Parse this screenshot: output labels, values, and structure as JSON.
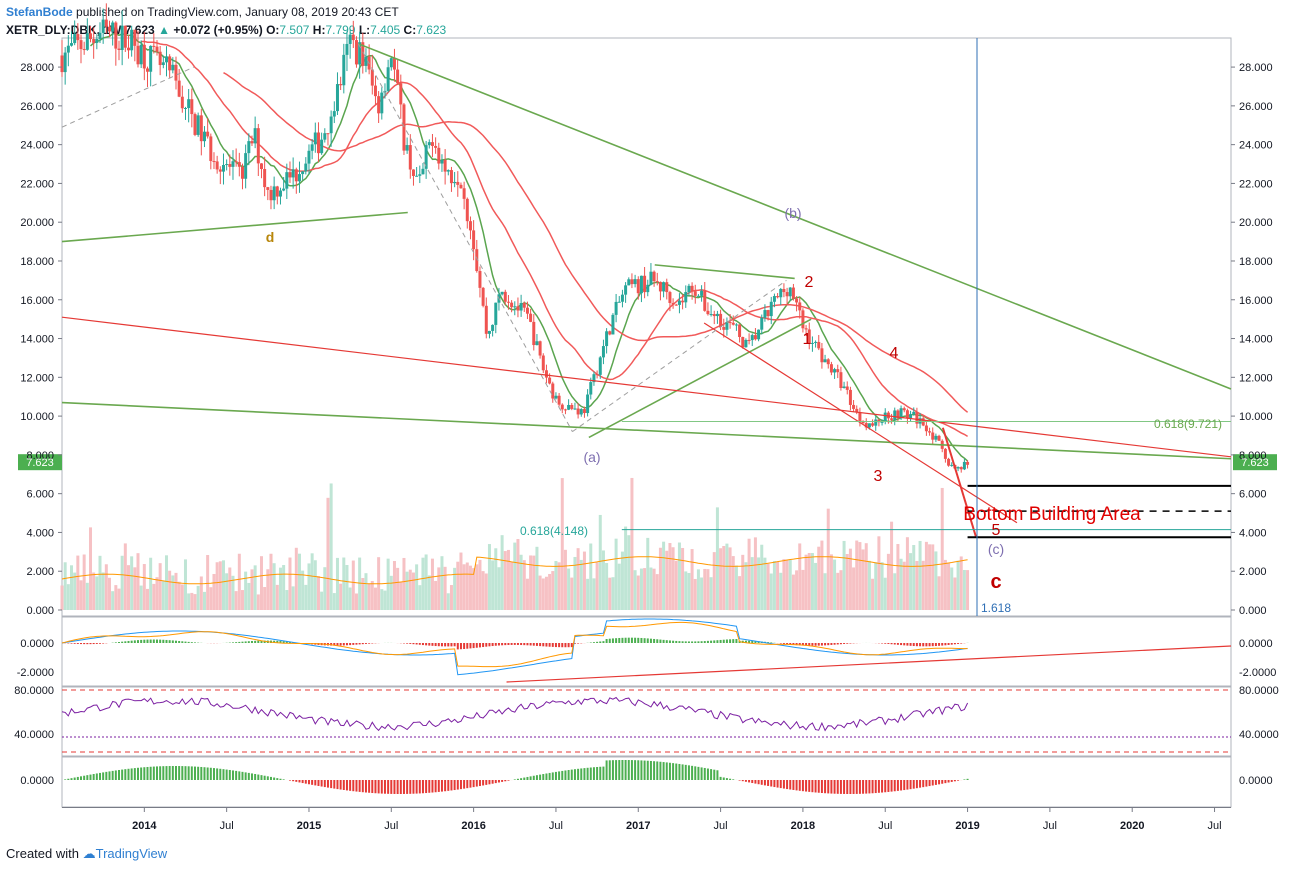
{
  "header": {
    "author": "StefanBode",
    "published_text": "published on TradingView.com, January 08, 2019 20:43 CET",
    "symbol": "XETR_DLY:DBK, 1W",
    "price": "7.623",
    "change": "+0.072 (+0.95%)",
    "open_label": "O:",
    "open": "7.507",
    "high_label": "H:",
    "high": "7.799",
    "low_label": "L:",
    "low": "7.405",
    "close_label": "C:",
    "close": "7.623"
  },
  "footer": {
    "created_with": "Created with",
    "brand": "TradingView"
  },
  "colors": {
    "up": "#26a69a",
    "down": "#ef5350",
    "ma": "#f15a5a",
    "ma_fast": "#5aa54f",
    "trend_green": "#6aa84f",
    "trend_red": "#e53935",
    "volume_up": "#bfe5d5",
    "volume_down": "#f6c1c4",
    "price_tag": "#4caf50",
    "macd_line": "#2196f3",
    "signal_line": "#ff9800",
    "rsi": "#7b1fa2",
    "hist_up": "#4caf50",
    "hist_down": "#e53935",
    "wave_red": "#c00000",
    "wave_purple": "#7e6fb0"
  },
  "chart_data": [
    {
      "type": "candlestick",
      "title": "XETR_DLY:DBK, 1W",
      "y_ticks": [
        "28.000",
        "26.000",
        "24.000",
        "22.000",
        "20.000",
        "18.000",
        "16.000",
        "14.000",
        "12.000",
        "10.000",
        "8.000",
        "6.000",
        "4.000",
        "2.000",
        "0.000"
      ],
      "ylim": [
        0,
        29.5
      ],
      "x_ticks": [
        "2014",
        "Jul",
        "2015",
        "Jul",
        "2016",
        "Jul",
        "2017",
        "Jul",
        "2018",
        "Jul",
        "2019",
        "Jul",
        "2020",
        "Jul"
      ],
      "x_range": [
        "2013-06",
        "2020-08"
      ],
      "last_price_tag": "7.623",
      "price_path": [
        [
          "2013-07",
          28.6
        ],
        [
          "2013-10",
          29.8
        ],
        [
          "2013-12",
          29.3
        ],
        [
          "2014-03",
          27.5
        ],
        [
          "2014-04",
          26.0
        ],
        [
          "2014-06",
          23.5
        ],
        [
          "2014-08",
          22.3
        ],
        [
          "2014-09",
          24.5
        ],
        [
          "2014-10",
          21.5
        ],
        [
          "2014-12",
          22.5
        ],
        [
          "2015-02",
          24.5
        ],
        [
          "2015-03",
          26.5
        ],
        [
          "2015-04",
          29.3
        ],
        [
          "2015-05",
          28.5
        ],
        [
          "2015-06",
          26.0
        ],
        [
          "2015-07",
          28.8
        ],
        [
          "2015-08",
          24.0
        ],
        [
          "2015-09",
          21.8
        ],
        [
          "2015-10",
          24.6
        ],
        [
          "2015-11",
          22.5
        ],
        [
          "2015-12",
          22.6
        ],
        [
          "2016-01",
          19.0
        ],
        [
          "2016-02",
          14.0
        ],
        [
          "2016-03",
          16.5
        ],
        [
          "2016-05",
          15.0
        ],
        [
          "2016-06",
          12.6
        ],
        [
          "2016-07",
          10.8
        ],
        [
          "2016-09",
          10.2
        ],
        [
          "2016-10",
          12.5
        ],
        [
          "2016-11",
          14.8
        ],
        [
          "2016-12",
          16.5
        ],
        [
          "2017-02",
          17.0
        ],
        [
          "2017-03",
          16.5
        ],
        [
          "2017-04",
          15.8
        ],
        [
          "2017-05",
          16.8
        ],
        [
          "2017-06",
          15.5
        ],
        [
          "2017-08",
          14.5
        ],
        [
          "2017-09",
          13.5
        ],
        [
          "2017-11",
          16.0
        ],
        [
          "2017-12",
          16.8
        ],
        [
          "2018-01",
          14.6
        ],
        [
          "2018-02",
          13.5
        ],
        [
          "2018-03",
          12.5
        ],
        [
          "2018-04",
          11.5
        ],
        [
          "2018-05",
          10.0
        ],
        [
          "2018-06",
          9.5
        ],
        [
          "2018-07",
          10.0
        ],
        [
          "2018-08",
          10.2
        ],
        [
          "2018-09",
          10.0
        ],
        [
          "2018-10",
          9.5
        ],
        [
          "2018-11",
          8.4
        ],
        [
          "2018-12",
          7.2
        ],
        [
          "2019-01",
          7.623
        ]
      ],
      "levels": [
        {
          "label": "0.618(9.721)",
          "value": 9.721
        },
        {
          "label": "0.618(4.148)",
          "value": 4.148
        },
        {
          "label": "Bottom Building Area",
          "upper": 6.4,
          "lower": 3.75
        }
      ],
      "fib_text": "1.618",
      "wave_labels": [
        "d",
        "(a)",
        "(b)",
        "(c)",
        "1",
        "2",
        "3",
        "4",
        "5",
        "c"
      ]
    },
    {
      "type": "bar",
      "title": "Volume",
      "note": "overlay on main pane"
    },
    {
      "type": "line",
      "title": "MACD",
      "y_ticks": [
        "0.0000",
        "-2.0000"
      ]
    },
    {
      "type": "line",
      "title": "RSI",
      "y_ticks": [
        "80.0000",
        "40.0000"
      ]
    },
    {
      "type": "bar",
      "title": "Oscillator",
      "y_ticks": [
        "0.0000"
      ]
    }
  ]
}
